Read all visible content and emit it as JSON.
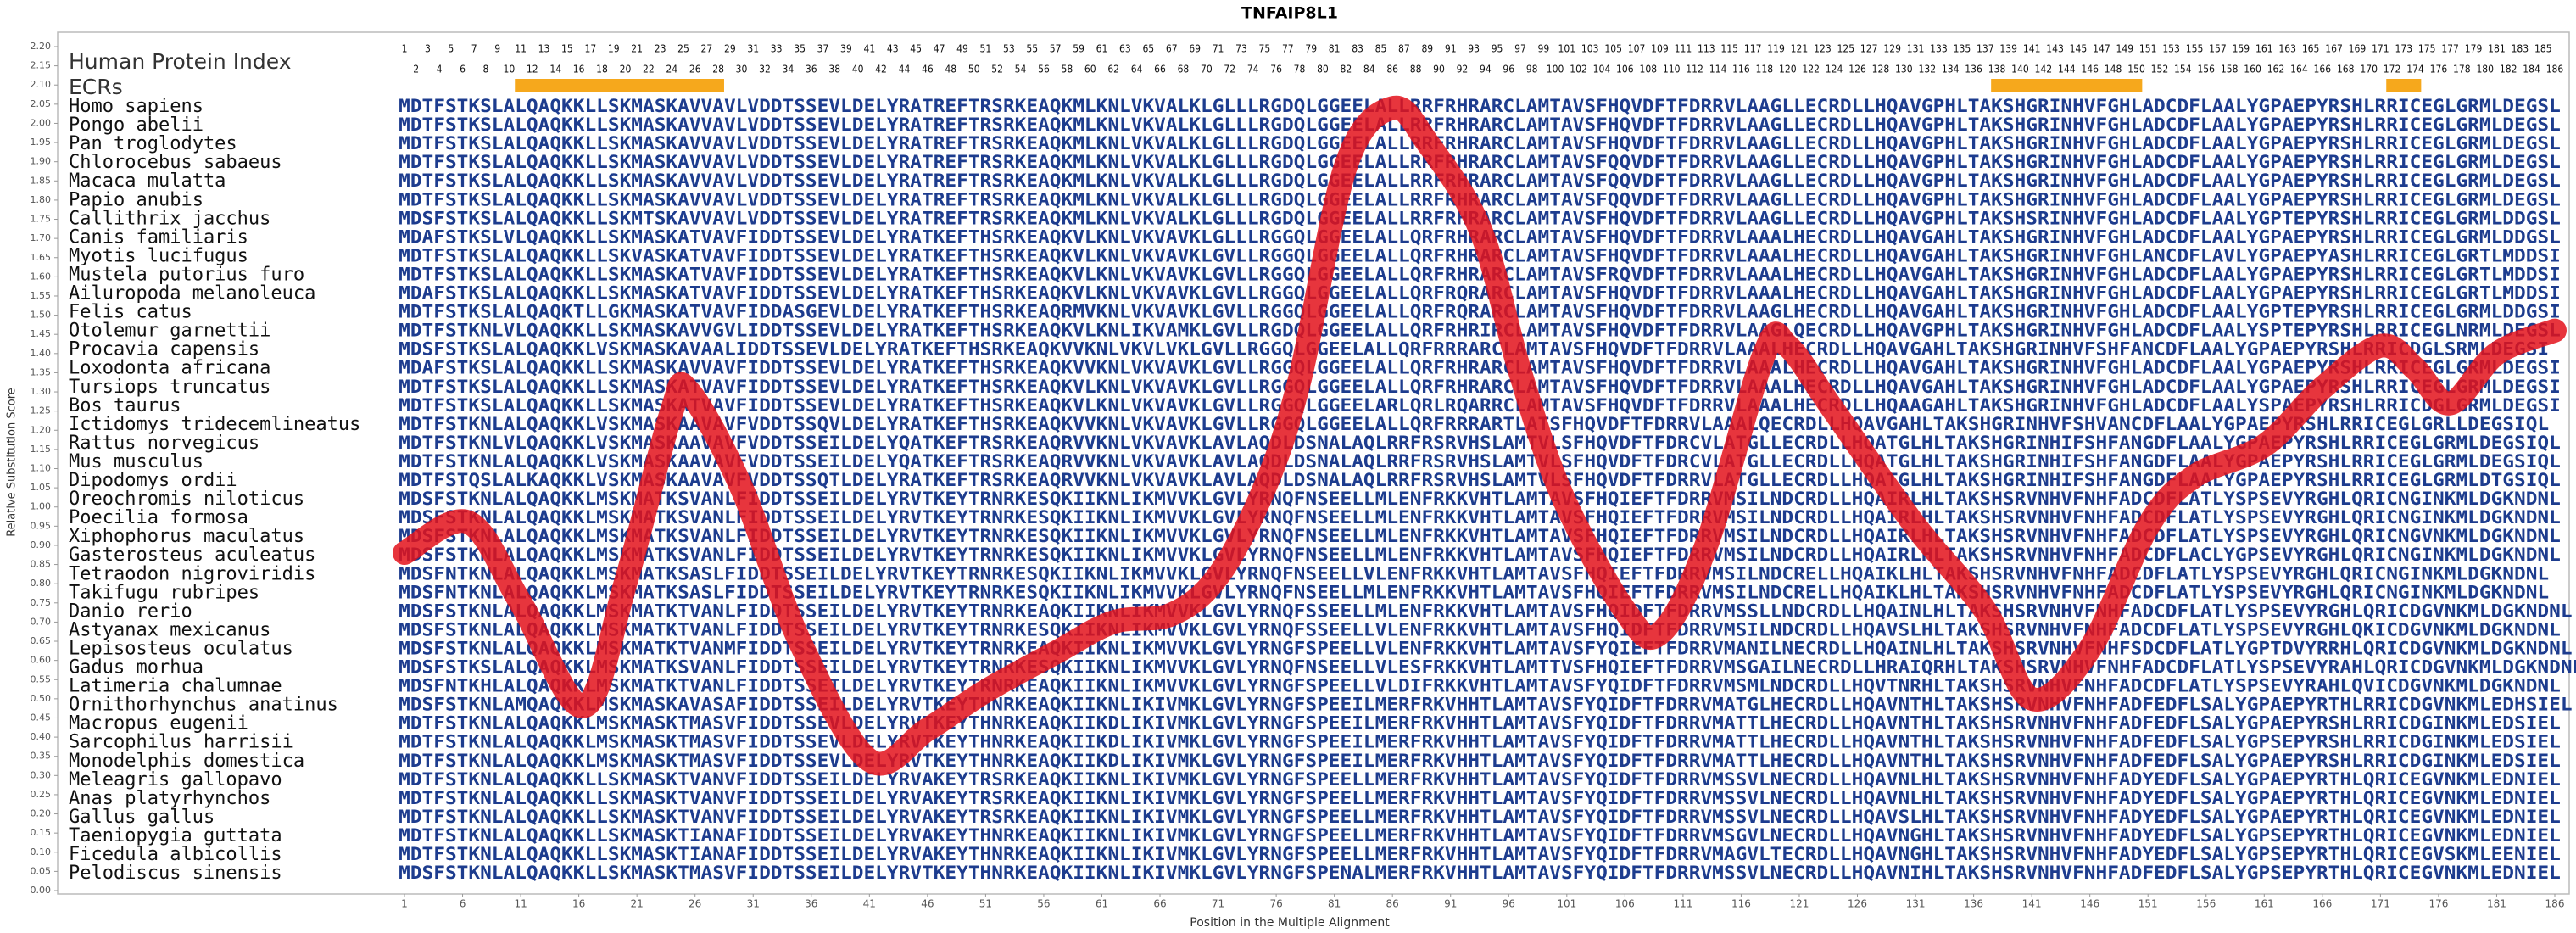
{
  "chart_data": {
    "type": "line",
    "title": "TNFAIP8L1",
    "ylabel": "Relative Substitution Score",
    "xlabel": "Position in the Multiple Alignment",
    "index_label": "Human Protein Index",
    "ecr_label": "ECRs",
    "color": "#e3121b",
    "ecr_color": "#f6a81c",
    "xlim": [
      1,
      186
    ],
    "ylim": [
      0,
      2.2
    ],
    "xticks": [
      1,
      6,
      11,
      16,
      21,
      26,
      31,
      36,
      41,
      46,
      51,
      56,
      61,
      66,
      71,
      76,
      81,
      86,
      91,
      96,
      101,
      106,
      111,
      116,
      121,
      126,
      131,
      136,
      141,
      146,
      151,
      156,
      161,
      166,
      171,
      176,
      181,
      186
    ],
    "yticks": [
      {
        "value": 0,
        "label": "0.00"
      },
      {
        "value": 0.05,
        "label": "0.05"
      },
      {
        "value": 0.1,
        "label": "0.10"
      },
      {
        "value": 0.15,
        "label": "0.15"
      },
      {
        "value": 0.2,
        "label": "0.20"
      },
      {
        "value": 0.25,
        "label": "0.25"
      },
      {
        "value": 0.3,
        "label": "0.30"
      },
      {
        "value": 0.35,
        "label": "0.35"
      },
      {
        "value": 0.4,
        "label": "0.40"
      },
      {
        "value": 0.45,
        "label": "0.45"
      },
      {
        "value": 0.5,
        "label": "0.50"
      },
      {
        "value": 0.55,
        "label": "0.55"
      },
      {
        "value": 0.6,
        "label": "0.60"
      },
      {
        "value": 0.65,
        "label": "0.65"
      },
      {
        "value": 0.7,
        "label": "0.70"
      },
      {
        "value": 0.75,
        "label": "0.75"
      },
      {
        "value": 0.8,
        "label": "0.80"
      },
      {
        "value": 0.85,
        "label": "0.85"
      },
      {
        "value": 0.9,
        "label": "0.90"
      },
      {
        "value": 0.95,
        "label": "0.95"
      },
      {
        "value": 1,
        "label": "1.00"
      },
      {
        "value": 1.05,
        "label": "1.05"
      },
      {
        "value": 1.1,
        "label": "1.10"
      },
      {
        "value": 1.15,
        "label": "1.15"
      },
      {
        "value": 1.2,
        "label": "1.20"
      },
      {
        "value": 1.25,
        "label": "1.25"
      },
      {
        "value": 1.3,
        "label": "1.30"
      },
      {
        "value": 1.35,
        "label": "1.35"
      },
      {
        "value": 1.4,
        "label": "1.40"
      },
      {
        "value": 1.45,
        "label": "1.45"
      },
      {
        "value": 1.5,
        "label": "1.50"
      },
      {
        "value": 1.55,
        "label": "1.55"
      },
      {
        "value": 1.6,
        "label": "1.60"
      },
      {
        "value": 1.65,
        "label": "1.65"
      },
      {
        "value": 1.7,
        "label": "1.70"
      },
      {
        "value": 1.75,
        "label": "1.75"
      },
      {
        "value": 1.8,
        "label": "1.80"
      },
      {
        "value": 1.85,
        "label": "1.85"
      },
      {
        "value": 1.9,
        "label": "1.90"
      },
      {
        "value": 1.95,
        "label": "1.95"
      },
      {
        "value": 2,
        "label": "2.00"
      },
      {
        "value": 2.05,
        "label": "2.05"
      },
      {
        "value": 2.1,
        "label": "2.10"
      },
      {
        "value": 2.15,
        "label": "2.15"
      },
      {
        "value": 2.2,
        "label": "2.20"
      }
    ],
    "positions": [
      1,
      2,
      3,
      4,
      5,
      6,
      7,
      8,
      9,
      10,
      11,
      12,
      13,
      14,
      15,
      16,
      17,
      18,
      19,
      20,
      21,
      22,
      23,
      24,
      25,
      26,
      27,
      28,
      29,
      30,
      31,
      32,
      33,
      34,
      35,
      36,
      37,
      38,
      39,
      40,
      41,
      42,
      43,
      44,
      45,
      46,
      47,
      48,
      49,
      50,
      51,
      52,
      53,
      54,
      55,
      56,
      57,
      58,
      59,
      60,
      61,
      62,
      63,
      64,
      65,
      66,
      67,
      68,
      69,
      70,
      71,
      72,
      73,
      74,
      75,
      76,
      77,
      78,
      79,
      80,
      81,
      82,
      83,
      84,
      85,
      86,
      87,
      88,
      89,
      90,
      91,
      92,
      93,
      94,
      95,
      96,
      97,
      98,
      99,
      100,
      101,
      102,
      103,
      104,
      105,
      106,
      107,
      108,
      109,
      110,
      111,
      112,
      113,
      114,
      115,
      116,
      117,
      118,
      119,
      120,
      121,
      122,
      123,
      124,
      125,
      126,
      127,
      128,
      129,
      130,
      131,
      132,
      133,
      134,
      135,
      136,
      137,
      138,
      139,
      140,
      141,
      142,
      143,
      144,
      145,
      146,
      147,
      148,
      149,
      150,
      151,
      152,
      153,
      154,
      155,
      156,
      157,
      158,
      159,
      160,
      161,
      162,
      163,
      164,
      165,
      166,
      167,
      168,
      169,
      170,
      171,
      172,
      173,
      174,
      175,
      176,
      177,
      178,
      179,
      180,
      181,
      182,
      183,
      184,
      185,
      186
    ],
    "ecrs": [
      [
        11,
        28
      ],
      [
        138,
        150
      ],
      [
        172,
        174
      ]
    ],
    "x": [
      1,
      6.5,
      11,
      16.4,
      20,
      24,
      25.5,
      30,
      35,
      41,
      46,
      51,
      57,
      62,
      67,
      71,
      75,
      78,
      82,
      86,
      89,
      93.6,
      97,
      100.6,
      106,
      109,
      113,
      118,
      120,
      124,
      131,
      137,
      141,
      146,
      151,
      155,
      161,
      166,
      171,
      174,
      177,
      181,
      186
    ],
    "values": [
      0.88,
      0.96,
      0.75,
      0.48,
      0.8,
      1.25,
      1.3,
      1.05,
      0.65,
      0.34,
      0.42,
      0.52,
      0.62,
      0.7,
      0.72,
      0.82,
      1.05,
      1.33,
      1.89,
      2.04,
      1.95,
      1.72,
      1.35,
      1.03,
      0.73,
      0.67,
      0.9,
      1.4,
      1.42,
      1.25,
      0.95,
      0.73,
      0.5,
      0.63,
      0.95,
      1.08,
      1.16,
      1.31,
      1.42,
      1.36,
      1.27,
      1.4,
      1.46
    ],
    "species": [
      {
        "name": "Homo sapiens",
        "sequence": "MDTFSTKSLALQAQKKLLSKMASKAVVAVLVDDTSSEVLDELYRATREFTRSRKEAQKMLKNLVKVALKLGLLLRGDQLGGEELALLRRFRHRARCLAMTAVSFHQVDFTFDRRVLAAGLLECRDLLHQAVGPHLTAKSHGRINHVFGHLADCDFLAALYGPAEPYRSHLRRICEGLGRMLDEGSL"
      },
      {
        "name": "Pongo abelii",
        "sequence": "MDTFSTKSLALQAQKKLLSKMASKAVVAVLVDDTSSEVLDELYRATREFTRSRKEAQKMLKNLVKVALKLGLLLRGDQLGGEELALLRRFRHRARCLAMTAVSFHQVDFTFDRRVLAAGLLECRDLLHQAVGPHLTAKSHGRINHVFGHLADCDFLAALYGPAEPYRSHLRRICEGLGRMLDEGSL"
      },
      {
        "name": "Pan troglodytes",
        "sequence": "MDTFSTKSLALQAQKKLLSKMASKAVVAVLVDDTSSEVLDELYRATREFTRSRKEAQKMLKNLVKVALKLGLLLRGDQLGGEELALLRRFRHRARCLAMTAVSFHQVDFTFDRRVLAAGLLECRDLLHQAVGPHLTAKSHGRINHVFGHLADCDFLAALYGPAEPYRSHLRRICEGLGRMLDEGSL"
      },
      {
        "name": "Chlorocebus sabaeus",
        "sequence": "MDTFSTKSLALQAQKKLLSKMASKAVVAVLVDDTSSEVLDELYRATREFTRSRKEAQKMLKNLVKVALKLGLLLRGDQLGGEELALLRRFRHRARCLAMTAVSFQQVDFTFDRRVLAAGLLECRDLLHQAVGPHLTAKSHGRINHVFGHLADCDFLAALYGPAEPYRSHLRRICEGLGRMLDEGSL"
      },
      {
        "name": "Macaca mulatta",
        "sequence": "MDTFSTKSLALQAQKKLLSKMASKAVVAVLVDDTSSEVLDELYRATREFTRSRKEAQKMLKNLVKVALKLGLLLRGDQLGGEELALLRRFRHRARCLAMTAVSFQQVDFTFDRRVLAAGLLECRDLLHQAVGPHLTAKSHGRINHVFGHLADCDFLAALYGPAEPYRSHLRRICEGLGRMLDEGSL"
      },
      {
        "name": "Papio anubis",
        "sequence": "MDTFSTKSLALQAQKKLLSKMASKAVVAVLVDDTSSEVLDELYRATREFTRSRKEAQKMLKNLVKVALKLGLLLRGDQLGGEELALLRRFRHRARCLAMTAVSFQQVDFTFDRRVLAAGLLECRDLLHQAVGPHLTAKSHGRINHVFGHLADCDFLAALYGPAEPYRSHLRRICEGLGRMLDEGSL"
      },
      {
        "name": "Callithrix jacchus",
        "sequence": "MDSFSTKSLALQAQKKLLSKMTSKAVVAVLVDDTSSEVLDELYRATREFTRSRKEAQKMLKNLVKVALKLGLLLRGDQLGGEELALLRRFRHRARCLAMTAVSFHQVDFTFDRRVLAAGLLECRDLLHQAVGPHLTAKSHSRINHVFGHLADCDFLAALYGPTEPYRSHLRRICEGLGRMLDDGSL"
      },
      {
        "name": "Canis familiaris",
        "sequence": "MDAFSTKSLVLQAQKKLLSKMASKATVAVFIDDTSSEVLDELYRATKEFTHSRKEAQKVLKNLVKVAVKLGLLLRGGQLGGEELALLQRFRHRARCLAMTAVSFHQVDFTFDRRVLAAALHECRDLLHQAVGAHLTAKSHGRINHVFGHLADCDFLAALYGPAEPYRSHLRRICEGLGRMLDDGSL"
      },
      {
        "name": "Myotis lucifugus",
        "sequence": "MDTFSTKSLALQAQKKLLSKVASKATVAVFIDDTSSEVLDELYRATKEFTHSRKEAQKVLKNLVKVAVKLGVLLRGGQLGGEELALLQRFRHRARCLAMTAVSFHQVDFTFDRRVLAAALHECRDLLHQAVGAHLTAKSHGRINHVFGHLANCDFLAVLYGPAEPYASHLRRICEGLGRTLMDDSI"
      },
      {
        "name": "Mustela putorius furo",
        "sequence": "MDTFSTKSLALQAQKKLLSKMASKATVAVFIDDTSSEVLDELYRATKEFTHSRKEAQKVLKNLVKVAVKLGVLLRGGQLGGEELALLQRFRHRARCLAMTAVSFRQVDFTFDRRVLAAALHECRDLLHQAVGAHLTAKSHGRINHVFGHLADCDFLAALYGPAEPYRSHLRRICEGLGRTLMDDSI"
      },
      {
        "name": "Ailuropoda melanoleuca",
        "sequence": "MDAFSTKSLALQAQKKLLSKMASKATVAVFIDDTSSEVLDELYRATKEFTHSRKEAQKVLKNLVKVAVKLGVLLRGGQLGGEELALLQRFRQRARCLAMTAVSFHQVDFTFDRRVLAAALHECRDLLHQAVGAHLTAKSHGRINHVFGHLADCDFLAALYGPAEPYRSHLRRICEGLGRTLMDDSI"
      },
      {
        "name": "Felis catus",
        "sequence": "MDTFSTKSLALQAQKTLLGKMASKATVAVFIDDASGEVLDELYRATKEFTHSRKEAQRMVKNLVKVAVKLGVLLRGGQLGGEELALLQRFRQRARCLAMTAVSFHQVDFTFDRRVLAAGLHECRDLLHQAVGAHLTAKSHGRINHVFGHLADCDFLAALYGPTEPYRSHLRRICEGLGRMLDDGSI"
      },
      {
        "name": "Otolemur garnettii",
        "sequence": "MDTFSTKNLVLQAQKKLLSKMASKAVVGVLIDDTSSEVLDELYRATKEFTHSRKEAQKVLKNLIKVAMKLGVLLRGDQLGGEELALLQRFRHRIRCLAMTAVSFHQVDFTFDRRVLAAGLQECRDLLHQAVGPHLTAKSHGRINHVFGHLADCDFLAALYSPTEPYRSHLRRICEGLNRMLDEGSL"
      },
      {
        "name": "Procavia capensis",
        "sequence": "MDSFSTKSLALQAQKKLVSKMASKAVAALIDDTSSEVLDELYRATKEFTHSRKEAQKVVKNLVKVLVKLGVLLRGGQLGGEELALLQRFRRRARCLAMTAVSFHQVDFTFDRRVLAAALHECRDLLHQAVGAHLTAKSHGRINHVFSHFANCDFLAALYGPAEPYRSHLRRICDGLSRMLDEGSI"
      },
      {
        "name": "Loxodonta africana",
        "sequence": "MDAFSTKSLALQAQKKLLSKMASKAVVAVFIDDTSSEVLDELYRATKEFTHSRKEAQKVVKNLVKVAVKLGVLLRGGQLGGEELALLQRFRHRARCLAMTAVSFHQVDFTFDRRVLAAALHECRDLLHQAVGAHLTAKSHGRINHVFGHLADCDFLAALYGPAEPYRSHLRRICEGLGRMLDEGSI"
      },
      {
        "name": "Tursiops truncatus",
        "sequence": "MDTFSTKSLALQAQKKLLSKMASKATVAVFIDDTSSEVLDELYRATKEFTHSRKEAQKVLKNLVKVAVKLGVLLRGGQLGGEELALLQRFRHRARCLAMTAVSFHQVDFTFDRRVLAAALHECRDLLHQAVGAHLTAKSHGRINHVFGHLADCDFLAALYGPAEPYRSHLRRICEGLGRMLDEGSI"
      },
      {
        "name": "Bos taurus",
        "sequence": "MDTFSTKSLALQAQKKLLSKMASKATVAVFIDDTSSEVLDELYRATKEFTHSRKEAQKVLKNLVKVAVKLGVLLRGGQLGGEELARLQRLRQARRCLAMTAVSFHQVDFTFDRRVLAAALHECRDLLHQAAGAHLTAKSHGRINHVFGHLADCDFLAALYSPAEPYRSHLRRICDGLGRMLDEGSI"
      },
      {
        "name": "Ictidomys tridecemlineatus",
        "sequence": "MDTFSTKNLALQAQKKLVSKMASKAAVAVFVDDTSSQVLDELYRATKEFTHSRKEAQKVVKNLVKVAVKLGVLLRGGQLGGEELALLQRFRRRARTLATSFHQVDFTFDRRVLAAALQECRDLLHQAVGAHLTAKSHGRINHVFSHVANCDFLAALYGPAEPYRSHLRRICEGLGRLLDEGSIQL"
      },
      {
        "name": "Rattus norvegicus",
        "sequence": "MDTFSTKNLVLQAQKKLVSKMASKAAVAVFVDDTSSEILDELYQATKEFTRSRKEAQRVVKNLVKVAVKLAVLAQDLDSNALAQLRRFRSRVHSLAMTVLSFHQVDFTFDRCVLATGLLECRDLLHQATGLHLTAKSHGRINHIFSHFANGDFLAALYGPAEPYRSHLRRICEGLGRMLDEGSIQL"
      },
      {
        "name": "Mus musculus",
        "sequence": "MDTFSTKNLALQAQKKLVSKMASKAAVAVFVDDTSSEILDELYQATKEFTRSRKEAQRVVKNLVKVAVKLAVLAQDLDSNALAQLRRFRSRVHSLAMTVLSFHQVDFTFDRCVLATGLLECRDLLHQATGLHLTAKSHGRINHIFSHFANGDFLAALYGPAEPYRSHLRRICEGLGRMLDEGSIQL"
      },
      {
        "name": "Dipodomys ordii",
        "sequence": "MDTFSTQSLALKAQKKLVSKMASKAAVAVFVDDTSSQTLDELYRATKEFTRSRKEAQRVVKNLVKVAVKLAVLAQDLDSNALAQLRRFRSRVHSLAMTVLSFHQVDFTFDRRVLATGLLECRDLLHQATGLHLTAKSHGRINHIFSHFANGDFLAALYGPAEPYRSHLRRICEGLGRMLDTGSIQL"
      },
      {
        "name": "Oreochromis niloticus",
        "sequence": "MDSFSTKNLALQAQKKLMSKMATKSVANLFIDDTSSEILDELYRVTKEYTRNRKESQKIIKNLIKMVVKLGVLYRNQFNSEELLMLENFRKKVHTLAMTAVSFHQIEFTFDRRVMSILNDCRDLLHQAIRLHLTAKSHSRVNHVFNHFADCDFLATLYSPSEVYRGHLQRICNGINKMLDGKNDNL"
      },
      {
        "name": "Poecilia formosa",
        "sequence": "MDSFSTKNLALQAQKKLMSKMATKSVANLFIDDTSSEILDELYRVTKEYTRNRKESQKIIKNLIKMVVKLGVLYRNQFNSEELLMLENFRKKVHTLAMTAVSFHQIEFTFDRRVMSILNDCRDLLHQAIRLHLTAKSHSRVNHVFNHFADCDFLATLYSPSEVYRGHLQRICNGINKMLDGKNDNL"
      },
      {
        "name": "Xiphophorus maculatus",
        "sequence": "MDSFSTKNLALQAQKKLMSKMATKSVANLFIDDTSSEILDELYRVTKEYTRNRKESQKIIKNLIKMVVKLGVLYRNQFNSEELLMLENFRKKVHTLAMTAVSFHQIEFTFDRRVMSILNDCRDLLHQAIRLHLTAKSHSRVNHVFNHFADCDFLATLYSPSEVYRGHLQRICNGVNKMLDGKNDNL"
      },
      {
        "name": "Gasterosteus aculeatus",
        "sequence": "MDSFSTKNLALQAQKKLMSKMATKSVANLFIDDTSSEILDELYRVTKEYTRNRKESQKIIKNLIKMVVKLGVLYRNQFNSEELLMLENFRKKVHTLAMTAVSFHQIEFTFDRRVMSILNDCRDLLHQAIRLHLTAKSHSRVNHVFNHFADCDFLACLYGPSEVYRGHLQRICNGINKMLDGKNDNL"
      },
      {
        "name": "Tetraodon nigroviridis",
        "sequence": "MDSFNTKNLALQAQKKLMSKMATKSASLFIDDTSSEILDELYRVTKEYTRNRKESQKIIKNLIKMVVKLGVLYRNQFNSEELLVLENFRKKVHTLAMTAVSFHQIEFTFDRRVMSILNDCRELLHQAIKLHLTAKSHSRVNHVFNHFADCDFLATLYSPSEVYRGHLQRICNGINKMLDGKNDNL"
      },
      {
        "name": "Takifugu rubripes",
        "sequence": "MDSFNTKNLALQAQKKLMSKMATKSASLFIDDTSSEILDELYRVTKEYTRNRKESQKIIKNLIKMVVKLGVLYRNQFNSEELLMLENFRKKVHTLAMTAVSFHQIEFTFDRRVMSILNDCRELLHQAIKLHLTAKSHSRVNHVFNHFADCDFLATLYSPSEVYRGHLQRICNGINKMLDGKNDNL"
      },
      {
        "name": "Danio rerio",
        "sequence": "MDSFSTKNLALQAQKKLMSKMATKTVANLFIDDTSSEILDELYRVTKEYTRNRKEAQKIIKNLIKMVVKLGVLYRNQFSSEELLMLENFRKKVHTLAMTAVSFHQIDFTFDRRVMSSLLNDCRDLLHQAINLHLTAKSHSRVNHVFNHFADCDFLATLYSPSEVYRGHLQRICDGVNKMLDGKNDNL"
      },
      {
        "name": "Astyanax mexicanus",
        "sequence": "MDSFSTKNLALQAQKKLMSKMATKTVANLFIDDTSSEILDELYRVTKEYTRNRKESQKIIKNLIKMVVKLGVLYRNQFSSEELLVLENFRKKVHTLAMTAVSFHQIDFTFDRRVMSILNDCRDLLHQAVSLHLTAKSHSRVNHVFNHFADCDFLATLYSPSEVYRGHLQKICDGVNKMLDGKNDNL"
      },
      {
        "name": "Lepisosteus oculatus",
        "sequence": "MDSFSTKNLALQAQKKLMSKMATKTVANMFIDDTSSEILDELYRVTKEYTRNRKEAQKIIKNLIKMVVKLGVLYRNGFSPEELLVLENFRKKVHTLAMTAVSFYQIEFTFDRRVMANILNECRDLLHQAINLHLTAKSHSRVNHVFNHFSDCDFLATLYGPTDVYRRHLQRICDGVNKMLDGKNDNL"
      },
      {
        "name": "Gadus morhua",
        "sequence": "MDSFSTKSLALQAQKKLMSKMATKSVANLFIDDTSSEILDELYRVTKEYTRNRKESQKIIKNLIKMVVKLGVLYRNQFNSEELLVLESFRKKVHTLAMTTVSFHQIEFTFDRRVMSGAILNECRDLLHRAIQRHLTAKSHSRVNHVFNHFADCDFLATLYSPSEVYRAHLQRICDGVNKMLDGKNDNL"
      },
      {
        "name": "Latimeria chalumnae",
        "sequence": "MDSFNTKHLALQAQKKLMSKMATKTVANLFIDDTSSEILDELYRVTKEYTRNRKEAQKIIKNLIKMVVKLGVLYRNGFSPEELLVLDIFRKKVHTLAMTAVSFYQIDFTFDRRVMSMLNDCRDLLHQVTNRHLTAKSHSRVNHVFNHFADCDFLATLYSPSEVYRAHLQVICDGVNKMLDGKNDNL"
      },
      {
        "name": "Ornithorhynchus anatinus",
        "sequence": "MDSFSTKNLAMQAQKKLMSKMASKAVASAFIDDTSSEILDELYRVTKEYTHNRKEAQKIIKNLIKIVMKLGVLYRNGFSPEEILMERFRKVHHTLAMTAVSFYQIDFTFDRRVMATGLHECRDLLHQAVNTHLTAKSHSRVNHVFNHFADFEDFLSALYGPAEPYRTHLRRICDGVNKMLEDHSIEL"
      },
      {
        "name": "Macropus eugenii",
        "sequence": "MDTFSTKNLALQAQKKLMSKMASKTMASVFIDDTSSEVLDELYRVTKEYTHNRKEAQKIIKDLIKIVMKLGVLYRNGFSPEEILMERFRKVHHTLAMTAVSFYQIDFTFDRRVMATTLHECRDLLHQAVNTHLTAKSHSRVNHVFNHFADFEDFLSALYGPAEPYRSHLRRICDGINKMLEDSIEL"
      },
      {
        "name": "Sarcophilus harrisii",
        "sequence": "MDTFSTKNLALQAQKKLMSKMASKTMASVFIDDTSSEVLDELYRVTKEYTHNRKEAQKIIKDLIKIVMKLGVLYRNGFSPEEILMERFRKVHHTLAMTAVSFYQIDFTFDRRVMATTLHECRDLLHQAVNTHLTAKSHSRVNHVFNHFADFEDFLSALYGPSEPYRSHLRRICDGINKMLEDSIEL"
      },
      {
        "name": "Monodelphis domestica",
        "sequence": "MDTFSTKNLALQAQKKLMSKMASKTMASVFIDDTSSEVLDELYRVTKEYTHNRKEAQKIIKDLIKIVMKLGVLYRNGFSPEEILMERFRKVHHTLAMTAVSFYQIDFTFDRRVMATTLHECRDLLHQAVNTHLTAKSHSRVNHVFNHFADFEDFLSALYGPAEPYRSHLRRICDGINKMLEDSIEL"
      },
      {
        "name": "Meleagris gallopavo",
        "sequence": "MDTFSTKNLALQAQKKLLSKMASKTVANVFIDDTSSEILDELYRVAKEYTRSRKEAQKIIKNLIKIVMKLGVLYRNGFSPEELLMERFRKVHHTLAMTAVSFYQIDFTFDRRVMSSVLNECRDLLHQAVNLHLTAKSHSRVNHVFNHFADYEDFLSALYGPAEPYRTHLQRICEGVNKMLEDNIEL"
      },
      {
        "name": "Anas platyrhynchos",
        "sequence": "MDTFSTKNLALQAQKKLLSKMASKTVANVFIDDTSSEILDELYRVAKEYTRSRKEAQKIIKNLIKIVMKLGVLYRNGFSPEELLMERFRKVHHTLAMTAVSFYQIDFTFDRRVMSSVLNECRDLLHQAVNLHLTAKSHSRVNHVFNHFADYEDFLSALYGPAEPYRTHLQRICEGVNKMLEDNIEL"
      },
      {
        "name": "Gallus gallus",
        "sequence": "MDTFSTKNLALQAQKKLLSKMASKTVANVFIDDTSSEILDELYRVAKEYTRSRKEAQKIIKNLIKIVMKLGVLYRNGFSPEELLMERFRKVHHTLAMTAVSFYQIDFTFDRRVMSSVLNECRDLLHQAVSLHLTAKSHSRVNHVFNHFADYEDFLSALYGPAEPYRTHLQRICEGVNKMLEDNIEL"
      },
      {
        "name": "Taeniopygia guttata",
        "sequence": "MDTFSTKNLALQAQKKLLSKMASKTIANAFIDDTSSEILDELYRVAKEYTHNRKEAQKIIKNLIKIVMKLGVLYRNGFSPEELLMERFRKVHHTLAMTAVSFYQIDFTFDRRVMSGVLNECRDLLHQAVNGHLTAKSHSRVNHVFNHFADYEDFLSALYGPSEPYRTHLQRICEGVNKMLEDNIEL"
      },
      {
        "name": "Ficedula albicollis",
        "sequence": "MDTFSTKNLALQAQKKLLSKMASKTIANAFIDDTSSEILDELYRVAKEYTHNRKEAQKIIKNLIKIVMKLGVLYRNGFSPEELLMERFRKVHHTLAMTAVSFYQIDFTFDRRVMAGVLTECRDLLHQAVNGHLTAKSHSRVNHVFNHFADYEDFLSALYGPSEPYRTHLQRICEGVSKMLEENIEL"
      },
      {
        "name": "Pelodiscus sinensis",
        "sequence": "MDSFSTKNLALQAQKKLLSKMASKTMASVFIDDTSSEILDELYRVTKEYTHNRKEAQKIIKNLIKIVMKLGVLYRNGFSPENALMERFRKVHHTLAMTAVSFYQIDFTFDRRVMSSVLNECRDLLHQAVNIHLTAKSHSRVNHVFNHFADFEDFLSALYGPSEPYRTHLQRICEGVNKMLEDNIEL"
      }
    ]
  }
}
